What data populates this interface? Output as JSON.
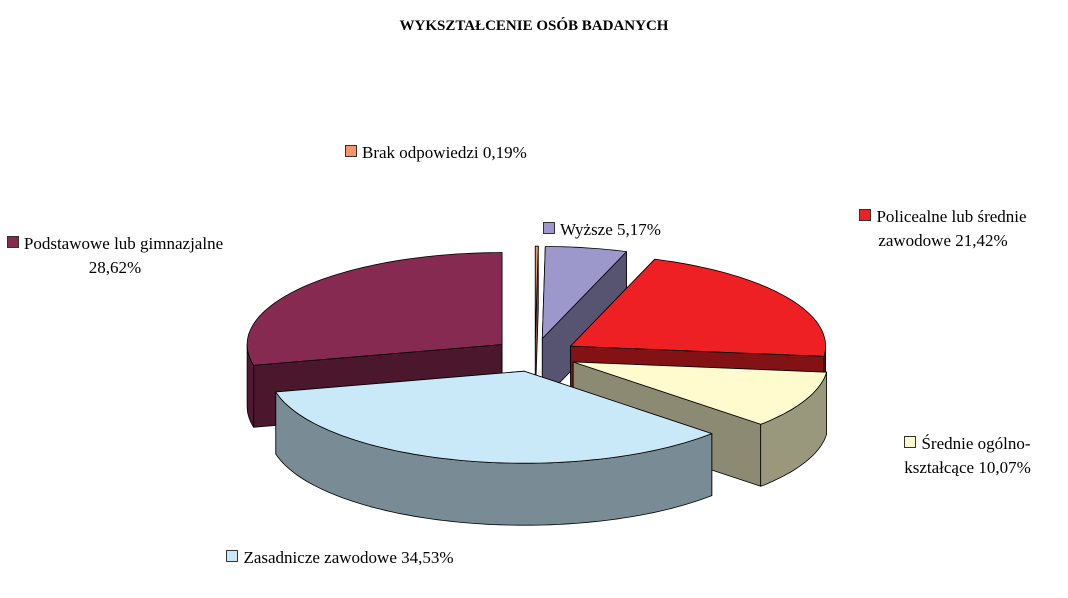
{
  "chart_data": {
    "type": "pie3d",
    "title": "WYKSZTAŁCENIE OSÓB BADANYCH",
    "categories": [
      "Brak odpowiedzi",
      "Wyższe",
      "Policealne lub średnie zawodowe",
      "Średnie ogólno-kształcące",
      "Zasadnicze zawodowe",
      "Podstawowe lub gimnazjalne"
    ],
    "values": [
      0.19,
      5.17,
      21.42,
      10.07,
      34.53,
      28.62
    ],
    "value_labels": [
      "0,19%",
      "5,17%",
      "21,42%",
      "10,07%",
      "34,53%",
      "28,62%"
    ],
    "colors": [
      "#f4956b",
      "#9c98cc",
      "#ee2024",
      "#fffbcf",
      "#c9e9f9",
      "#862a52"
    ]
  }
}
